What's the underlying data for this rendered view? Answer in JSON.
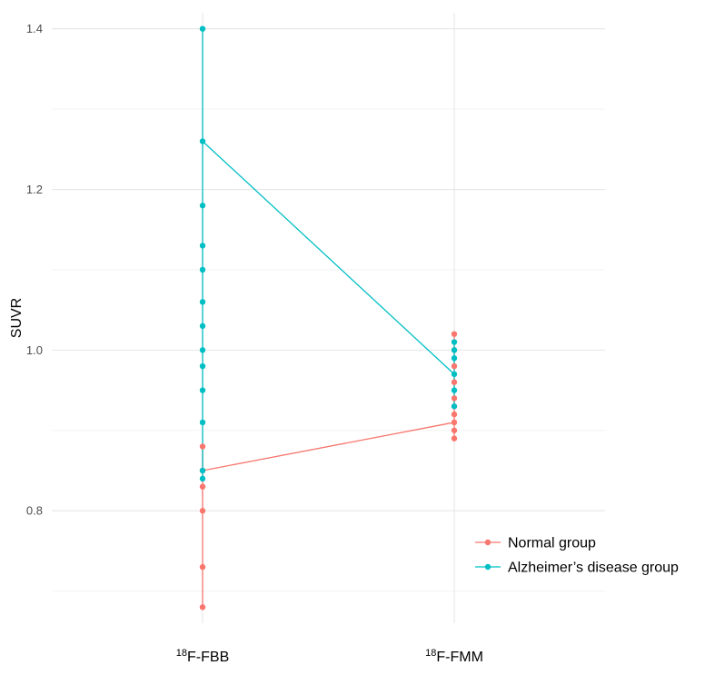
{
  "chart_data": {
    "type": "line",
    "title": "",
    "xlabel": "",
    "ylabel": "SUVR",
    "categories": [
      {
        "sup": "18",
        "label": "F-FBB"
      },
      {
        "sup": "18",
        "label": "F-FMM"
      }
    ],
    "ylim": [
      0.66,
      1.42
    ],
    "y_ticks": [
      0.8,
      1.0,
      1.2,
      1.4
    ],
    "y_tick_labels": [
      "0.8",
      "1.0",
      "1.2",
      "1.4"
    ],
    "y_minor_ticks": [
      0.7,
      0.9,
      1.1,
      1.3
    ],
    "grid": true,
    "legend_position": "bottom-right",
    "series": [
      {
        "name": "Normal group",
        "color": "#F8766D",
        "mean_line": [
          0.85,
          0.91
        ],
        "points": [
          [
            0.68,
            0.73,
            0.8,
            0.83,
            0.85,
            0.88
          ],
          [
            0.89,
            0.9,
            0.91,
            0.92,
            0.93,
            0.94,
            0.96,
            0.98,
            1.0,
            1.02
          ]
        ]
      },
      {
        "name": "Alzheimer’s disease group",
        "color": "#00BFC4",
        "mean_line": [
          1.26,
          0.97
        ],
        "points": [
          [
            0.84,
            0.85,
            0.91,
            0.95,
            0.98,
            1.0,
            1.03,
            1.06,
            1.1,
            1.13,
            1.18,
            1.26,
            1.4
          ],
          [
            0.93,
            0.95,
            0.97,
            0.99,
            1.0,
            1.01
          ]
        ]
      }
    ]
  }
}
